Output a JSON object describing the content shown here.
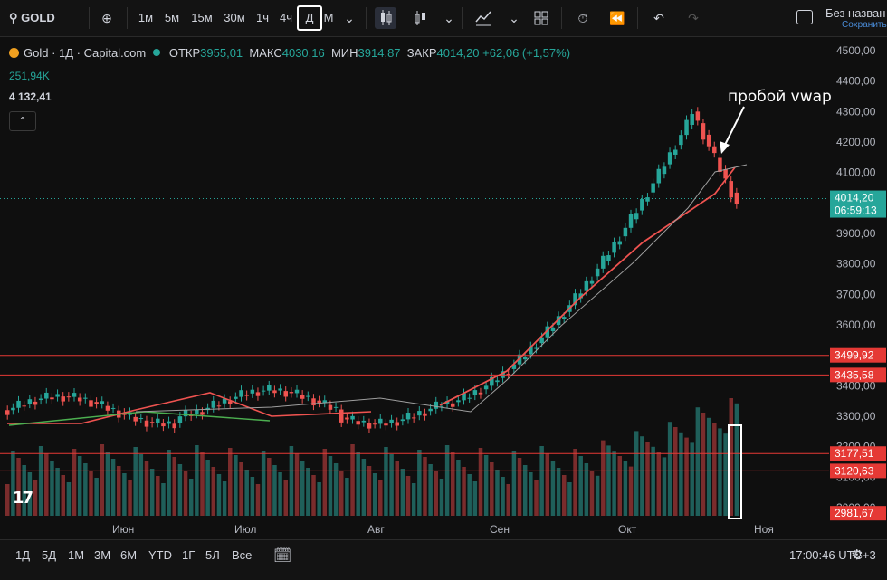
{
  "toolbar": {
    "symbol": "GOLD",
    "intervals": [
      "1м",
      "5м",
      "15м",
      "30м",
      "1ч",
      "4ч",
      "Д",
      "М"
    ],
    "active_interval": "Д",
    "save_title": "Без назван",
    "save_subtitle": "Сохранить"
  },
  "legend": {
    "title": "Gold · 1Д · Capital.com",
    "open_label": "ОТКР",
    "open": "3955,01",
    "high_label": "МАКС",
    "high": "4030,16",
    "low_label": "МИН",
    "low": "3914,87",
    "close_label": "ЗАКР",
    "close": "4014,20",
    "change": "+62,06 (+1,57%)",
    "volume": "251,94K",
    "indicator": "4 132,41"
  },
  "annotation": "пробой vwap",
  "price_axis": {
    "ticks": [
      "4500,00",
      "4400,00",
      "4300,00",
      "4200,00",
      "4100,00",
      "4000,00",
      "3900,00",
      "3800,00",
      "3700,00",
      "3600,00",
      "3500,00",
      "3400,00",
      "3300,00",
      "3200,00",
      "3100,00",
      "3000,00"
    ],
    "tick_values": [
      4500,
      4400,
      4300,
      4200,
      4100,
      4000,
      3900,
      3800,
      3700,
      3600,
      3500,
      3400,
      3300,
      3200,
      3100,
      3000
    ],
    "current_price": "4014,20",
    "countdown": "06:59:13",
    "levels": [
      {
        "label": "3499,92",
        "value": 3499.92
      },
      {
        "label": "3435,58",
        "value": 3435.58
      },
      {
        "label": "3177,51",
        "value": 3177.51
      },
      {
        "label": "3120,63",
        "value": 3120.63
      },
      {
        "label": "2981,67",
        "value": 2981.67
      }
    ]
  },
  "time_axis": [
    "Июн",
    "Июл",
    "Авг",
    "Сен",
    "Окт",
    "Ноя"
  ],
  "bottom": {
    "ranges": [
      "1Д",
      "5Д",
      "1М",
      "3М",
      "6М",
      "YTD",
      "1Г",
      "5Л",
      "Все"
    ],
    "clock": "17:00:46 UTC+3"
  },
  "colors": {
    "up": "#26a69a",
    "down": "#ef5350",
    "level": "#e53935",
    "accent": "#2962ff"
  }
}
